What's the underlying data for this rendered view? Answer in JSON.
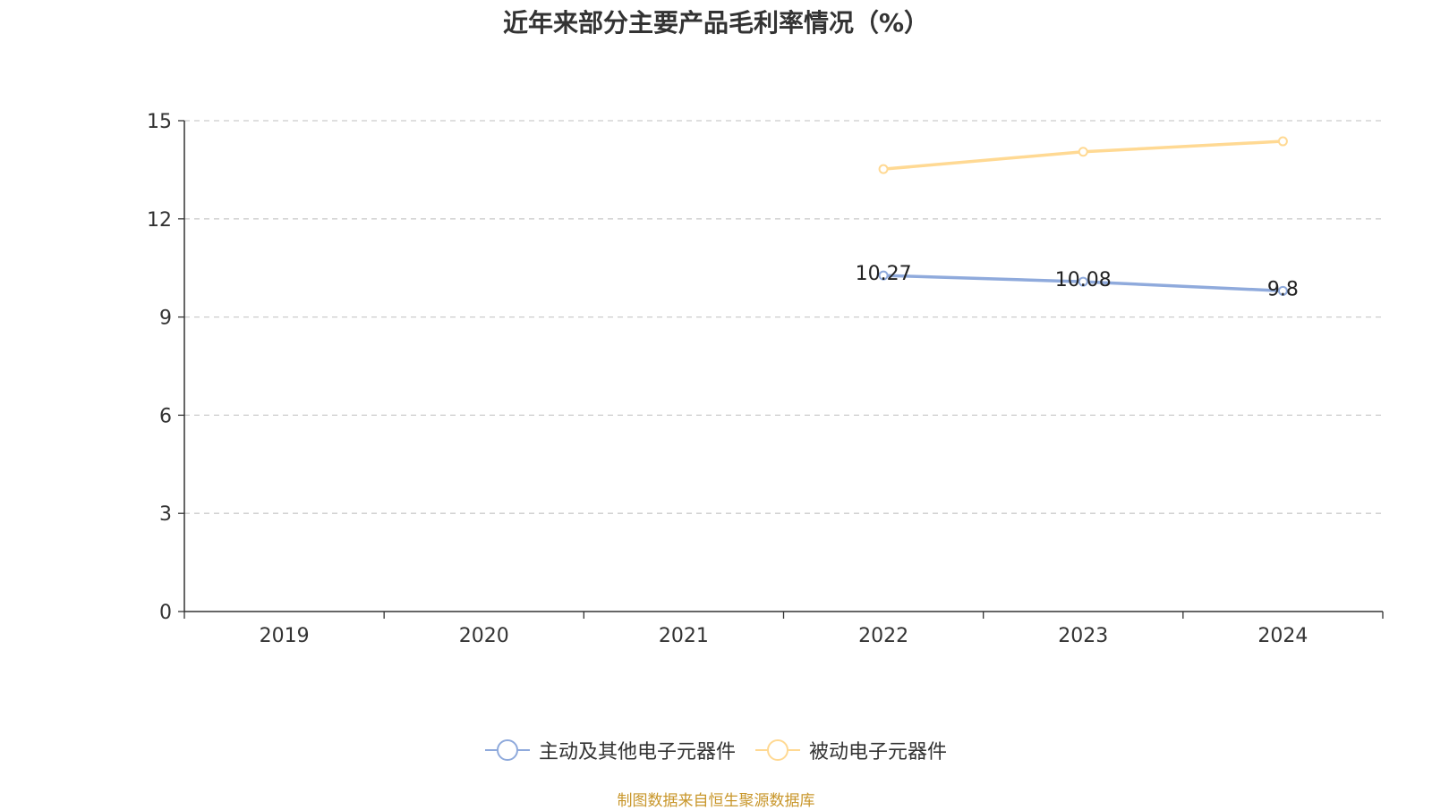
{
  "chart_data": {
    "type": "line",
    "title": "近年来部分主要产品毛利率情况（%）",
    "xlabel": "",
    "ylabel": "",
    "categories": [
      "2019",
      "2020",
      "2021",
      "2022",
      "2023",
      "2024"
    ],
    "ylim": [
      0,
      15
    ],
    "yticks": [
      0,
      3,
      6,
      9,
      12,
      15
    ],
    "grid": true,
    "legend_position": "bottom",
    "series": [
      {
        "name": "主动及其他电子元器件",
        "color": "#8faadc",
        "values": [
          null,
          null,
          null,
          10.27,
          10.08,
          9.8
        ],
        "data_labels": [
          "",
          "",
          "",
          "10.27",
          "10.08",
          "9.8"
        ]
      },
      {
        "name": "被动电子元器件",
        "color": "#ffd993",
        "values": [
          null,
          null,
          null,
          13.52,
          14.05,
          14.37
        ],
        "data_labels": [
          "",
          "",
          "",
          "",
          "",
          ""
        ]
      }
    ]
  },
  "source_text": "制图数据来自恒生聚源数据库"
}
